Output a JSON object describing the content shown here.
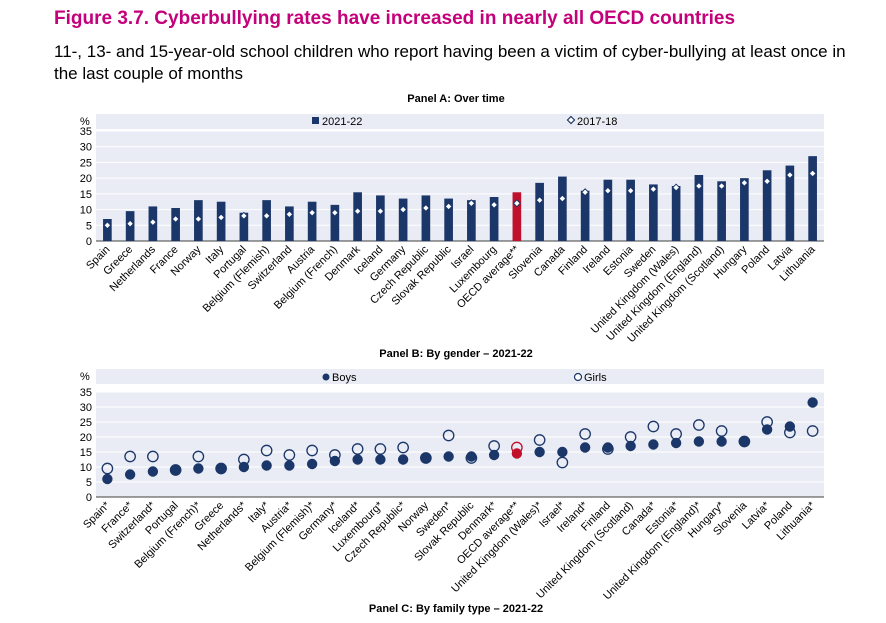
{
  "figure": {
    "title": "Figure 3.7. Cyberbullying rates have increased in nearly all OECD countries",
    "subtitle": "11-, 13- and 15-year-old school children who report having been a victim of cyber-bullying at least once in the last couple of months"
  },
  "colors": {
    "title": "#c4007a",
    "primary": "#1b3668",
    "highlight": "#c0102c",
    "plot_bg": "#e9ecf4"
  },
  "chart_data": [
    {
      "panel": "Panel A: Over time",
      "type": "bar",
      "ylabel": "%",
      "ylim": [
        0,
        35
      ],
      "yticks": [
        0,
        5,
        10,
        15,
        20,
        25,
        30,
        35
      ],
      "grid": true,
      "legend": "top",
      "categories": [
        "Spain",
        "Greece",
        "Netherlands",
        "France",
        "Norway",
        "Italy",
        "Portugal",
        "Belgium (Flemish)",
        "Switzerland",
        "Austria",
        "Belgium (French)",
        "Denmark",
        "Iceland",
        "Germany",
        "Czech Republic",
        "Slovak Republic",
        "Israel",
        "Luxembourg",
        "OECD average**",
        "Slovenia",
        "Canada",
        "Finland",
        "Ireland",
        "Estonia",
        "Sweden",
        "United Kingdom (Wales)",
        "United Kingdom (England)",
        "United Kingdom (Scotland)",
        "Hungary",
        "Poland",
        "Latvia",
        "Lithuania"
      ],
      "highlight_category": "OECD average**",
      "series": [
        {
          "name": "2021-22",
          "kind": "bar",
          "values": [
            7,
            9.5,
            11,
            10.5,
            13,
            12.5,
            9,
            13,
            11,
            12.5,
            11.5,
            15.5,
            14.5,
            13.5,
            14.5,
            13.5,
            13,
            14,
            15.5,
            18.5,
            20.5,
            16,
            19.5,
            19.5,
            18,
            17.5,
            21,
            19,
            20,
            22.5,
            24,
            27
          ]
        },
        {
          "name": "2017-18",
          "kind": "marker",
          "values": [
            5,
            5.5,
            6,
            7,
            7,
            7.5,
            8,
            8,
            8.5,
            9,
            9,
            9.5,
            9.5,
            10,
            10.5,
            11,
            12,
            11.5,
            12,
            13,
            13.5,
            15.5,
            16,
            16,
            16.5,
            17,
            17.5,
            17.5,
            18.5,
            19,
            21,
            21.5
          ]
        }
      ]
    },
    {
      "panel": "Panel B: By gender – 2021-22",
      "type": "scatter",
      "ylabel": "%",
      "ylim": [
        0,
        35
      ],
      "yticks": [
        0,
        5,
        10,
        15,
        20,
        25,
        30,
        35
      ],
      "grid": true,
      "legend": "top",
      "categories": [
        "Spain*",
        "France*",
        "Switzerland*",
        "Portugal",
        "Belgium (French)*",
        "Greece",
        "Netherlands*",
        "Italy*",
        "Austria*",
        "Belgium (Flemish)*",
        "Germany*",
        "Iceland*",
        "Luxembourg*",
        "Czech Republic*",
        "Norway",
        "Sweden*",
        "Slovak Republic",
        "Denmark*",
        "OECD average**",
        "United Kingdom (Wales)*",
        "Israel*",
        "Ireland*",
        "Finland",
        "United Kingdom (Scotland)",
        "Canada*",
        "Estonia*",
        "United Kingdom (England)*",
        "Hungary*",
        "Slovenia",
        "Latvia*",
        "Poland",
        "Lithuania*"
      ],
      "highlight_category": "OECD average**",
      "series": [
        {
          "name": "Boys",
          "kind": "filled",
          "values": [
            6,
            7.5,
            8.5,
            9,
            9.5,
            9.5,
            10,
            10.5,
            10.5,
            11,
            12,
            12.5,
            12.5,
            12.5,
            13,
            13.5,
            13.5,
            14,
            14.5,
            15,
            15,
            16.5,
            16.5,
            17,
            17.5,
            18,
            18.5,
            18.5,
            18.5,
            22.5,
            23.5,
            31.5
          ]
        },
        {
          "name": "Girls",
          "kind": "hollow",
          "values": [
            9.5,
            13.5,
            13.5,
            9,
            13.5,
            9.5,
            12.5,
            15.5,
            14,
            15.5,
            14,
            16,
            16,
            16.5,
            13,
            20.5,
            13,
            17,
            16.5,
            19,
            11.5,
            21,
            16,
            20,
            23.5,
            21,
            24,
            22,
            18.5,
            25,
            21.5,
            22
          ]
        }
      ]
    }
  ],
  "panel_c": {
    "title": "Panel C: By family type – 2021-22"
  }
}
